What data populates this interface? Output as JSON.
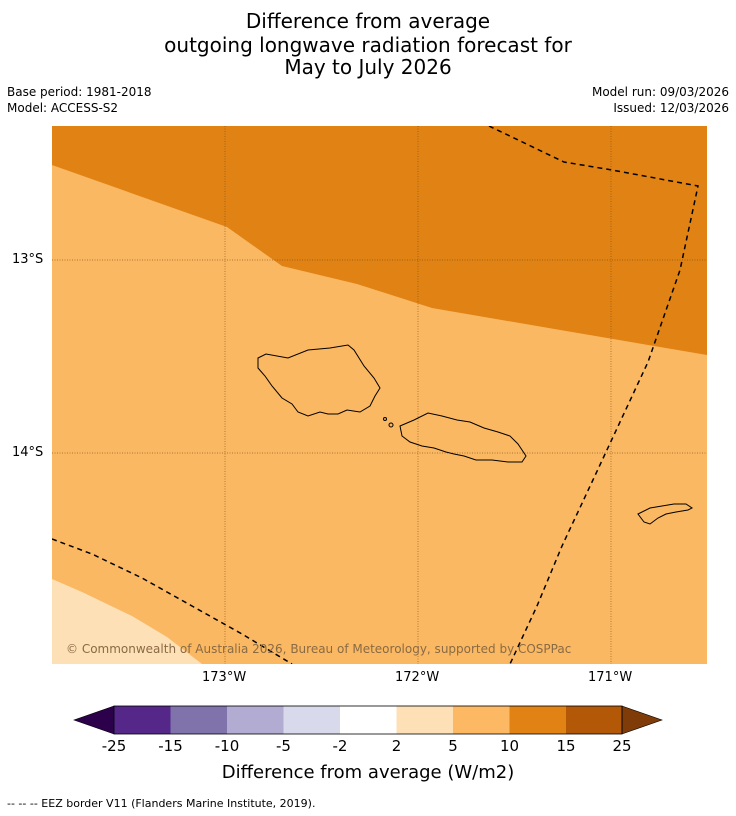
{
  "title": {
    "line1": "Difference from average",
    "line2": "outgoing longwave radiation forecast for",
    "line3": "May to July 2026"
  },
  "meta": {
    "base_period": "Base period: 1981-2018",
    "model": "Model: ACCESS-S2",
    "model_run": "Model run: 09/03/2026",
    "issued": "Issued: 12/03/2026"
  },
  "map": {
    "copyright": "© Commonwealth of Australia 2026, Bureau of Meteorology, supported by COSPPac",
    "lat_labels": [
      "13°S",
      "14°S"
    ],
    "lon_labels": [
      "173°W",
      "172°W",
      "171°W"
    ],
    "colors": {
      "bin_5_10": "#fab862",
      "bin_10_15": "#e08214",
      "bin_2_5": "#fee0b6",
      "coast": "#000000",
      "grid": "#7a4a10"
    }
  },
  "colorbar": {
    "labels": [
      "-25",
      "-15",
      "-10",
      "-5",
      "-2",
      "2",
      "5",
      "10",
      "15",
      "25"
    ],
    "colors": [
      "#2d004b",
      "#542788",
      "#8073ac",
      "#b2abd2",
      "#d8daeb",
      "#ffffff",
      "#fee0b6",
      "#fdb863",
      "#e08214",
      "#b35806",
      "#7f3b08"
    ],
    "title": "Difference from average (W/m2)"
  },
  "footer": "--  --  -- EEZ border V11 (Flanders Marine Institute, 2019)."
}
